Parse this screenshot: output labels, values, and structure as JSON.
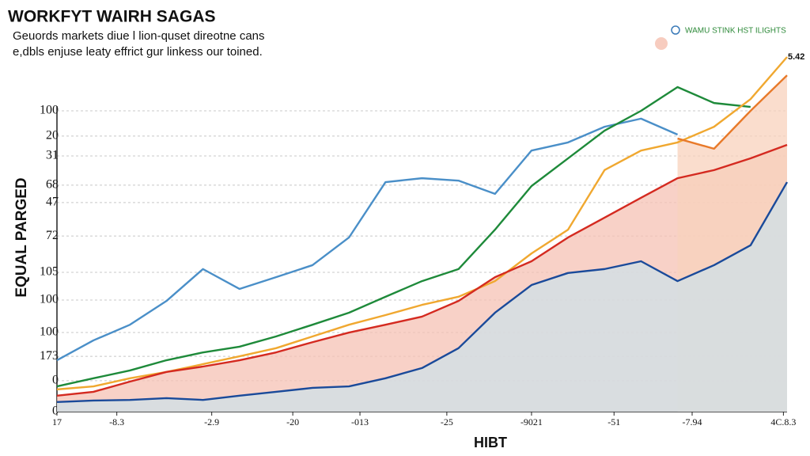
{
  "chart_data": {
    "type": "line",
    "title": "WORKFYT WAIRH SAGAS",
    "subtitle": [
      "Geuords markets diue l lion-quset direotne cans",
      "e,dbls enjuse leaty effrict gur linkess our toined."
    ],
    "y_label": "EQUAL PARGED",
    "x_label": "HIBT",
    "legend_text": "WAMU STINK HST ILIGHTS",
    "annotation": "5.42",
    "xlim": [
      0,
      100
    ],
    "xticks": [
      {
        "value": 0,
        "label": "17"
      },
      {
        "value": 8.2,
        "label": "-8.3"
      },
      {
        "value": 21.2,
        "label": "-2.9"
      },
      {
        "value": 32.3,
        "label": "-20"
      },
      {
        "value": 41.5,
        "label": "-013"
      },
      {
        "value": 53.4,
        "label": "-25"
      },
      {
        "value": 65,
        "label": "-9021"
      },
      {
        "value": 76.3,
        "label": "-51"
      },
      {
        "value": 87,
        "label": "-7.94"
      },
      {
        "value": 99.5,
        "label": "4C.8.3"
      }
    ],
    "ylim": [
      0,
      120
    ],
    "yticks": [
      {
        "value": 100,
        "label": "100"
      },
      {
        "value": 91.6,
        "label": "20"
      },
      {
        "value": 85,
        "label": "31"
      },
      {
        "value": 75.3,
        "label": "68"
      },
      {
        "value": 69.5,
        "label": "47"
      },
      {
        "value": 58.4,
        "label": "72"
      },
      {
        "value": 46.3,
        "label": "105"
      },
      {
        "value": 37.1,
        "label": "100"
      },
      {
        "value": 26.3,
        "label": "100"
      },
      {
        "value": 18.4,
        "label": "173"
      },
      {
        "value": 10.3,
        "label": "0"
      },
      0
    ],
    "grid": true,
    "x": [
      0,
      5,
      10,
      15,
      20,
      25,
      30,
      35,
      40,
      45,
      50,
      55,
      60,
      65,
      70,
      75,
      80,
      85,
      90,
      95,
      100
    ],
    "series": [
      {
        "color": "#4a8fc8",
        "fill": null,
        "values": [
          17.1,
          23.7,
          28.9,
          36.8,
          47.4,
          40.8,
          44.7,
          48.7,
          57.9,
          76.3,
          77.6,
          76.8,
          72.4,
          86.8,
          89.5,
          94.7,
          97.4,
          92.1,
          null,
          null,
          null
        ]
      },
      {
        "color": "#1e8a3a",
        "fill": null,
        "values": [
          8.4,
          11.1,
          13.7,
          17.1,
          19.7,
          21.6,
          25,
          28.9,
          32.9,
          38.2,
          43.4,
          47.4,
          60.5,
          75,
          84.2,
          93.4,
          100,
          107.9,
          102.6,
          101.3,
          null
        ]
      },
      {
        "color": "#f0a830",
        "fill": null,
        "values": [
          7.4,
          8.4,
          11.1,
          13.2,
          15.8,
          18.4,
          21.1,
          25,
          28.9,
          32.1,
          35.5,
          38.2,
          43.4,
          52.6,
          60.5,
          80.3,
          86.8,
          89.5,
          94.7,
          103.9,
          117.9
        ]
      },
      {
        "color": "#d42a20",
        "fill": "#f6c2b4",
        "values": [
          5.3,
          6.6,
          10,
          13.2,
          15,
          17.1,
          19.7,
          23.1,
          26.3,
          28.9,
          31.6,
          36.8,
          44.7,
          50,
          57.9,
          64.5,
          71.1,
          77.6,
          80.3,
          84.2,
          88.7
        ]
      },
      {
        "color": "#e87a2a",
        "fill": "#f8d2bc",
        "values": [
          null,
          null,
          null,
          null,
          null,
          null,
          null,
          null,
          null,
          null,
          null,
          null,
          null,
          null,
          null,
          null,
          null,
          90.8,
          87.4,
          100,
          111.8
        ]
      },
      {
        "color": "#1a4a9a",
        "fill": "#cfe0e8",
        "values": [
          3.2,
          3.7,
          3.9,
          4.5,
          3.9,
          5.3,
          6.6,
          7.9,
          8.4,
          11.1,
          14.5,
          21.1,
          32.9,
          42.1,
          46.1,
          47.4,
          50,
          43.4,
          48.7,
          55.3,
          76.3
        ]
      }
    ]
  }
}
